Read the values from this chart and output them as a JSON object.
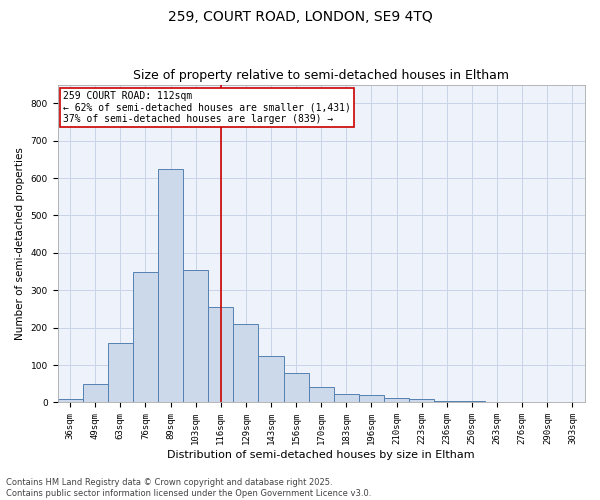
{
  "title1": "259, COURT ROAD, LONDON, SE9 4TQ",
  "title2": "Size of property relative to semi-detached houses in Eltham",
  "xlabel": "Distribution of semi-detached houses by size in Eltham",
  "ylabel": "Number of semi-detached properties",
  "bins": [
    "36sqm",
    "49sqm",
    "63sqm",
    "76sqm",
    "89sqm",
    "103sqm",
    "116sqm",
    "129sqm",
    "143sqm",
    "156sqm",
    "170sqm",
    "183sqm",
    "196sqm",
    "210sqm",
    "223sqm",
    "236sqm",
    "250sqm",
    "263sqm",
    "276sqm",
    "290sqm",
    "303sqm"
  ],
  "values": [
    10,
    50,
    160,
    350,
    625,
    355,
    255,
    210,
    125,
    80,
    42,
    22,
    20,
    12,
    8,
    3,
    5,
    1,
    0,
    2,
    0
  ],
  "bar_color": "#ccd9ea",
  "bar_edge_color": "#5580b0",
  "vline_x": 6.0,
  "vline_color": "#cc0000",
  "annotation_text": "259 COURT ROAD: 112sqm\n← 62% of semi-detached houses are smaller (1,431)\n37% of semi-detached houses are larger (839) →",
  "annotation_box_color": "#ffffff",
  "annotation_box_edge": "#cc0000",
  "ylim": [
    0,
    850
  ],
  "yticks": [
    0,
    100,
    200,
    300,
    400,
    500,
    600,
    700,
    800
  ],
  "grid_color": "#c8d4e8",
  "background_color": "#eef2fa",
  "footer": "Contains HM Land Registry data © Crown copyright and database right 2025.\nContains public sector information licensed under the Open Government Licence v3.0.",
  "title_fontsize": 10,
  "subtitle_fontsize": 9,
  "xlabel_fontsize": 8,
  "ylabel_fontsize": 7.5,
  "tick_fontsize": 6.5,
  "annotation_fontsize": 7,
  "footer_fontsize": 6
}
